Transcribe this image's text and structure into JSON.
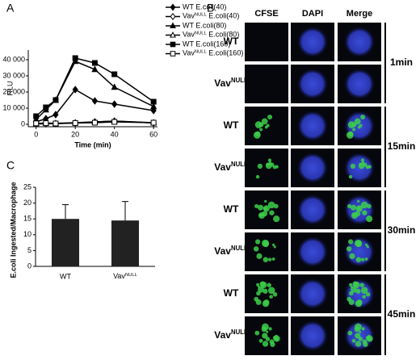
{
  "panel_labels": [
    "A",
    "B",
    "C"
  ],
  "chart_data": [
    {
      "type": "line",
      "x_label": "Time (min)",
      "y_label": "RLU",
      "x": [
        0,
        5,
        10,
        20,
        30,
        40,
        60
      ],
      "xlim": [
        -4,
        62
      ],
      "xticks": [
        0,
        20,
        40,
        60
      ],
      "ylim": [
        -1500,
        46000
      ],
      "yticks": [
        0,
        {
          "value": 10000,
          "label": "10 000"
        },
        {
          "value": 20000,
          "label": "20 000"
        },
        {
          "value": 30000,
          "label": "30 000"
        },
        {
          "value": 40000,
          "label": "40 000"
        }
      ],
      "series": [
        {
          "name": "WT E.coli(40)",
          "color": "#000000",
          "marker": "diamond",
          "filled": true,
          "values": [
            1500,
            3500,
            6000,
            21500,
            14500,
            12500,
            8500
          ]
        },
        {
          "name": "VavNULL E.coli(40)",
          "color": "#000000",
          "marker": "diamond",
          "filled": false,
          "values": [
            200,
            300,
            400,
            800,
            1500,
            2000,
            800
          ]
        },
        {
          "name": "WT E.coli(80)",
          "color": "#000000",
          "marker": "triangle",
          "filled": true,
          "values": [
            3000,
            9000,
            15000,
            39000,
            34000,
            23000,
            11000
          ]
        },
        {
          "name": "VavNULL E.coli(80)",
          "color": "#000000",
          "marker": "triangle",
          "filled": false,
          "values": [
            500,
            800,
            600,
            1000,
            1500,
            2000,
            1000
          ]
        },
        {
          "name": "WT E.coli(160)",
          "color": "#000000",
          "marker": "square",
          "filled": true,
          "values": [
            5000,
            10500,
            15000,
            41000,
            38000,
            31000,
            14000
          ]
        },
        {
          "name": "VavNULL E.coli(160)",
          "color": "#000000",
          "marker": "square",
          "filled": false,
          "values": [
            600,
            700,
            500,
            800,
            1000,
            1500,
            1000
          ]
        }
      ]
    },
    {
      "type": "bar",
      "y_label": "E.coli Ingested/Macrophage",
      "categories": [
        "WT",
        "VavNULL"
      ],
      "values": [
        15,
        14.5
      ],
      "errors": [
        4.5,
        6
      ],
      "color": "#222222",
      "ylim": [
        0,
        25
      ],
      "yticks": [
        0,
        5,
        10,
        15,
        20,
        25
      ]
    }
  ],
  "panel_b": {
    "columns": [
      "CFSE",
      "DAPI",
      "Merge"
    ],
    "rows": [
      "WT",
      "VavNULL",
      "WT",
      "VavNULL",
      "WT",
      "VavNULL",
      "WT",
      "VavNULL"
    ],
    "times": [
      "1min",
      "15min",
      "30min",
      "45min"
    ]
  }
}
